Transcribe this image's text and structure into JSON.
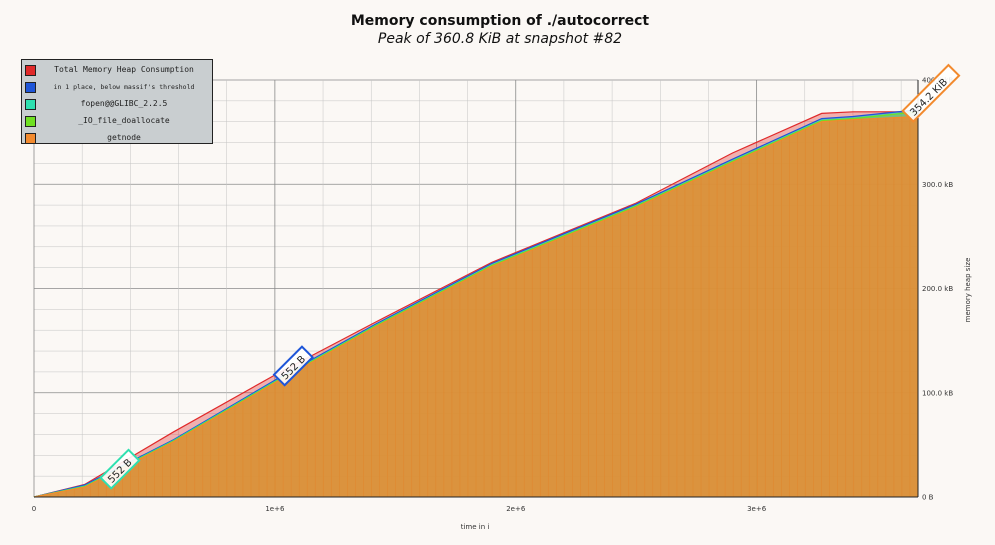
{
  "chart_data": {
    "type": "area",
    "title": "Memory consumption of ./autocorrect",
    "subtitle": "Peak of 360.8 KiB at snapshot #82",
    "xlabel": "time in i",
    "ylabel": "memory heap size",
    "xlim": [
      0,
      3670000
    ],
    "ylim": [
      0,
      400
    ],
    "x_ticks": [
      {
        "value": 0,
        "label": "0"
      },
      {
        "value": 1000000,
        "label": "1e+6"
      },
      {
        "value": 2000000,
        "label": "2e+6"
      },
      {
        "value": 3000000,
        "label": "3e+6"
      }
    ],
    "y_ticks": [
      {
        "value": 0,
        "label": "0 B"
      },
      {
        "value": 100,
        "label": "100.0 kB"
      },
      {
        "value": 200,
        "label": "200.0 kB"
      },
      {
        "value": 300,
        "label": "300.0 kB"
      },
      {
        "value": 400,
        "label": "400.0 kB"
      }
    ],
    "grid": true,
    "legend_position": "top-left",
    "x": [
      0,
      210000,
      580000,
      1000000,
      1420000,
      1900000,
      2500000,
      2900000,
      3270000,
      3400000,
      3670000
    ],
    "series": [
      {
        "name": "getnode",
        "color": "#f28a2e",
        "values": [
          0,
          9.5,
          53,
          109.5,
          163.5,
          221,
          278,
          321,
          360,
          362,
          365
        ]
      },
      {
        "name": "_IO_file_doallocate",
        "color": "#6fe022",
        "values": [
          0,
          10,
          53.7,
          110.3,
          164.3,
          222,
          279,
          322,
          361,
          363,
          369.5
        ]
      },
      {
        "name": "fopen@@GLIBC_2.2.5",
        "color": "#2ee0b0",
        "values": [
          0,
          10.5,
          54.2,
          110.8,
          164.8,
          222.5,
          279.5,
          322.5,
          361.5,
          363.5,
          370
        ]
      },
      {
        "name": "in 1 place, below massif's threshold",
        "color": "#1e55d8",
        "values": [
          0,
          11.5,
          55,
          112,
          166,
          224,
          281,
          324,
          363,
          365,
          371.5
        ]
      },
      {
        "name": "Total Memory Heap Consumption",
        "color": "#e02a2a",
        "values": [
          0,
          12,
          62.5,
          117,
          168,
          225,
          282,
          330,
          368,
          369.5,
          369.5
        ]
      }
    ],
    "annotations": [
      {
        "text": "552 B",
        "x": 300000,
        "y": 13,
        "color": "#2ee0b0"
      },
      {
        "text": "552 B",
        "x": 1020000,
        "y": 112,
        "color": "#1e55d8"
      },
      {
        "text": "354.2 KiB",
        "x": 3630000,
        "y": 365,
        "color": "#f28a2e"
      }
    ]
  }
}
